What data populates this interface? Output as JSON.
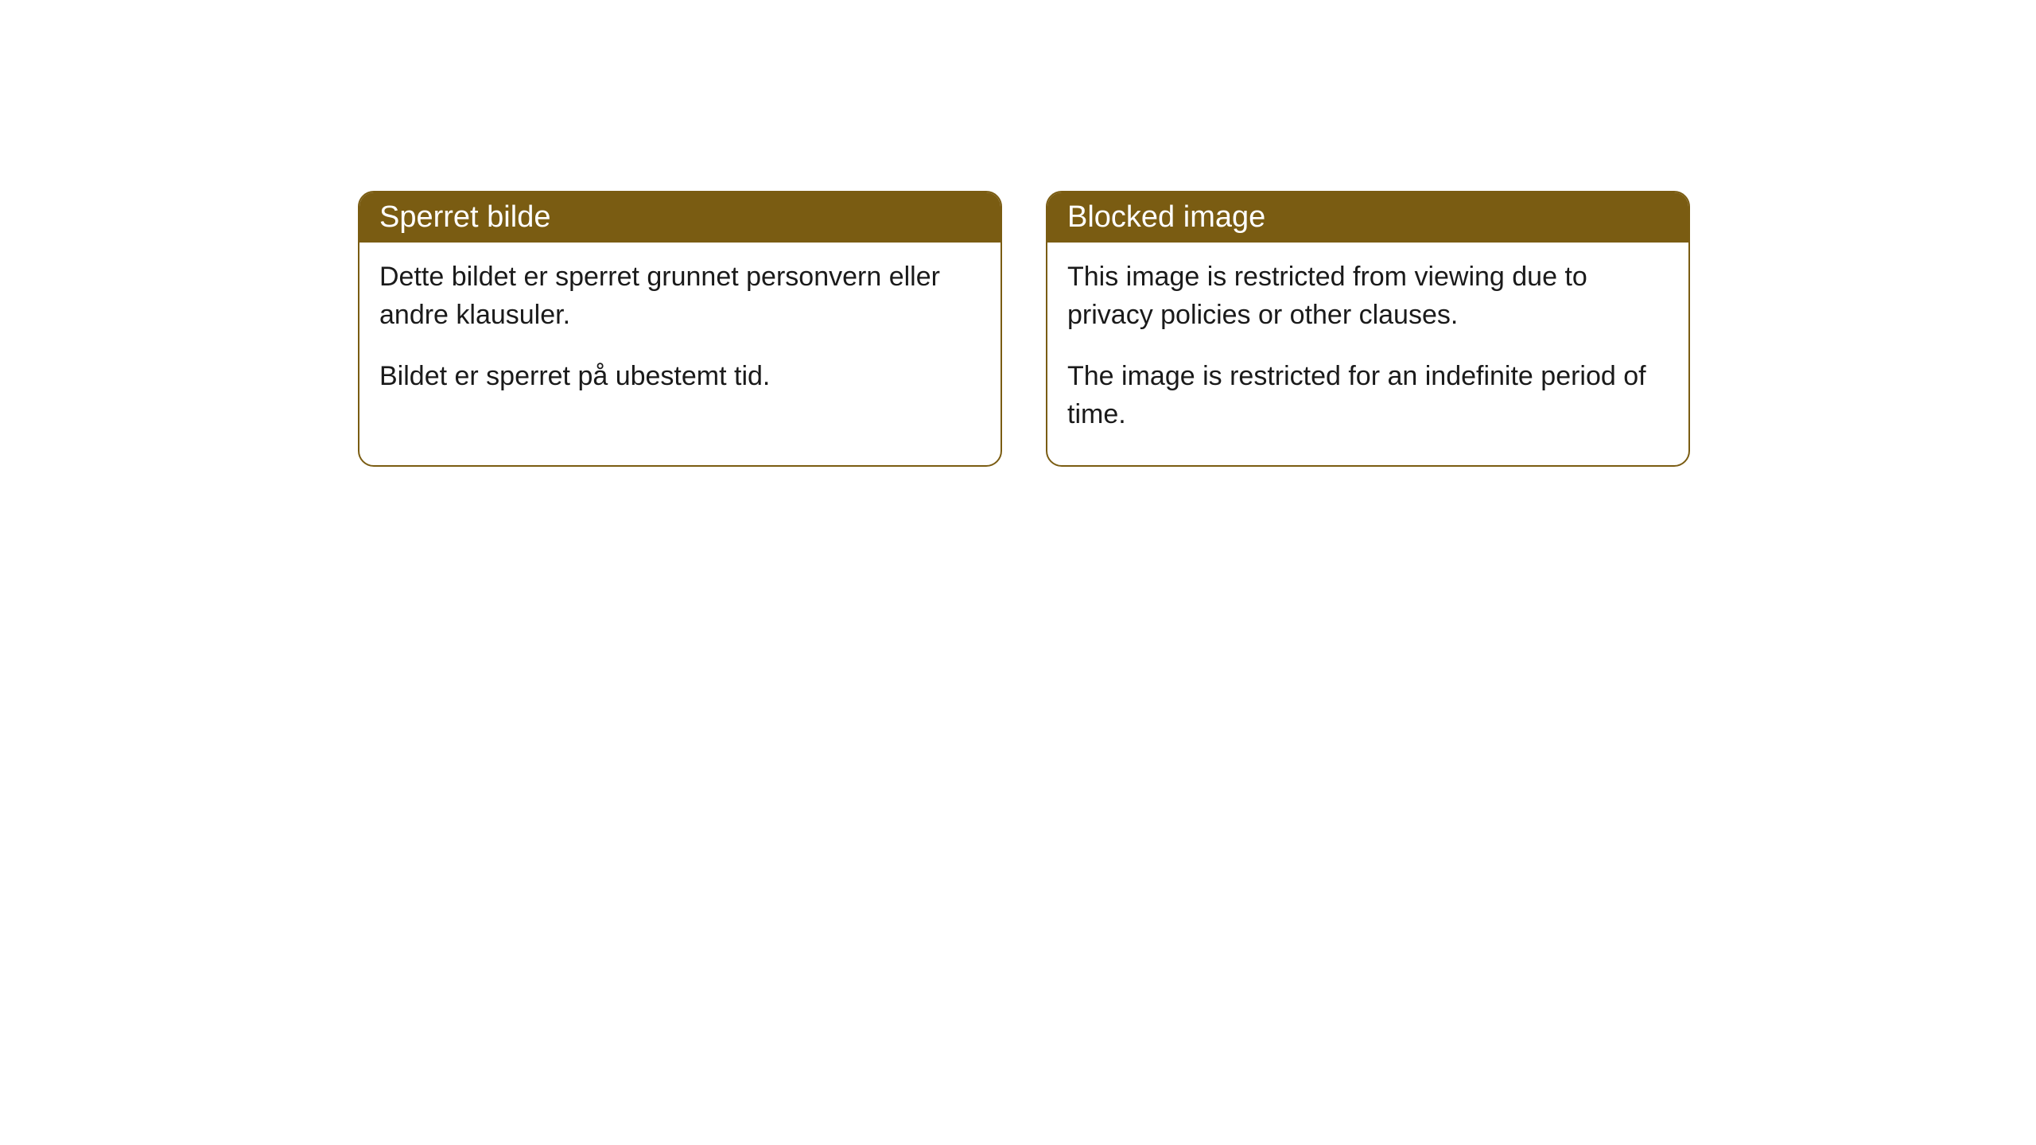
{
  "cards": [
    {
      "title": "Sperret bilde",
      "paragraph1": "Dette bildet er sperret grunnet personvern eller andre klausuler.",
      "paragraph2": "Bildet er sperret på ubestemt tid."
    },
    {
      "title": "Blocked image",
      "paragraph1": "This image is restricted from viewing due to privacy policies or other clauses.",
      "paragraph2": "The image is restricted for an indefinite period of time."
    }
  ],
  "styling": {
    "header_background_color": "#7a5c12",
    "header_text_color": "#ffffff",
    "border_color": "#7a5c12",
    "body_background_color": "#ffffff",
    "body_text_color": "#1a1a1a",
    "border_radius": 20,
    "header_fontsize": 38,
    "body_fontsize": 34
  }
}
